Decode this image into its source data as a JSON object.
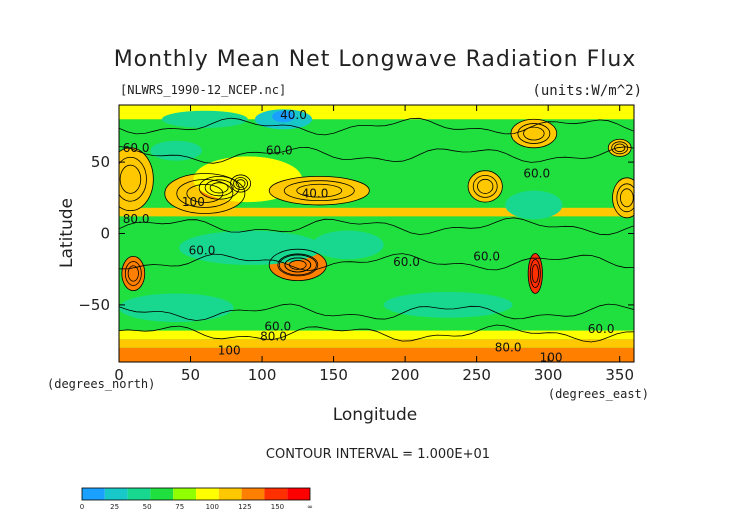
{
  "chart_data": {
    "type": "heatmap",
    "title": "Monthly Mean Net Longwave Radiation Flux",
    "subtitle": "[NLWRS_1990-12_NCEP.nc]",
    "units": "(units:W/m^2)",
    "xlabel": "Longitude",
    "ylabel": "Latitude",
    "x_unit_label": "(degrees_east)",
    "y_unit_label": "(degrees_north)",
    "xlim": [
      0,
      360
    ],
    "ylim": [
      -90,
      90
    ],
    "x_ticks": [
      0,
      50,
      100,
      150,
      200,
      250,
      300,
      350
    ],
    "y_ticks": [
      50,
      0,
      -50
    ],
    "contour_interval_text": "CONTOUR INTERVAL = 1.000E+01",
    "colorbar": {
      "tick_labels": [
        "0",
        "25",
        "50",
        "75",
        "100",
        "125",
        "150",
        "∞"
      ],
      "colors": [
        "#1aa0ff",
        "#18c8c8",
        "#18d890",
        "#20e040",
        "#90ff00",
        "#ffff00",
        "#ffc800",
        "#ff8000",
        "#ff3000",
        "#ff0000"
      ]
    },
    "contour_labels": [
      {
        "text": "40.0",
        "lon": 122,
        "lat": 83
      },
      {
        "text": "40.0",
        "lon": 137,
        "lat": 28
      },
      {
        "text": "60.0",
        "lon": 12,
        "lat": 60
      },
      {
        "text": "60.0",
        "lon": 112,
        "lat": 58
      },
      {
        "text": "60.0",
        "lon": 292,
        "lat": 42
      },
      {
        "text": "80.0",
        "lon": 12,
        "lat": 10
      },
      {
        "text": "100",
        "lon": 52,
        "lat": 22
      },
      {
        "text": "60.0",
        "lon": 58,
        "lat": -12
      },
      {
        "text": "60.0",
        "lon": 201,
        "lat": -20
      },
      {
        "text": "60.0",
        "lon": 257,
        "lat": -16
      },
      {
        "text": "60.0",
        "lon": 111,
        "lat": -65
      },
      {
        "text": "80.0",
        "lon": 108,
        "lat": -72
      },
      {
        "text": "100",
        "lon": 77,
        "lat": -82
      },
      {
        "text": "80.0",
        "lon": 272,
        "lat": -80
      },
      {
        "text": "100",
        "lon": 302,
        "lat": -87
      },
      {
        "text": "60.0",
        "lon": 337,
        "lat": -67
      }
    ],
    "regions": [
      {
        "level": 6,
        "lon": 8,
        "lat": 38,
        "rx": 16,
        "ry": 22
      },
      {
        "level": 6,
        "lon": 60,
        "lat": 28,
        "rx": 28,
        "ry": 14
      },
      {
        "level": 7,
        "lon": 70,
        "lat": 32,
        "rx": 14,
        "ry": 8
      },
      {
        "level": 8,
        "lon": 85,
        "lat": 35,
        "rx": 7,
        "ry": 6
      },
      {
        "level": 5,
        "lon": 90,
        "lat": 38,
        "rx": 38,
        "ry": 16
      },
      {
        "level": 6,
        "lon": 140,
        "lat": 30,
        "rx": 35,
        "ry": 10
      },
      {
        "level": 7,
        "lon": 10,
        "lat": -28,
        "rx": 8,
        "ry": 12
      },
      {
        "level": 8,
        "lon": 125,
        "lat": -22,
        "rx": 13,
        "ry": 7
      },
      {
        "level": 7,
        "lon": 125,
        "lat": -22,
        "rx": 20,
        "ry": 11
      },
      {
        "level": 8,
        "lon": 291,
        "lat": -28,
        "rx": 5,
        "ry": 14
      },
      {
        "level": 6,
        "lon": 256,
        "lat": 33,
        "rx": 12,
        "ry": 11
      },
      {
        "level": 6,
        "lon": 355,
        "lat": 25,
        "rx": 10,
        "ry": 14
      },
      {
        "level": 6,
        "lon": 290,
        "lat": 70,
        "rx": 16,
        "ry": 10
      },
      {
        "level": 2,
        "lon": 60,
        "lat": 80,
        "rx": 30,
        "ry": 6
      },
      {
        "level": 1,
        "lon": 115,
        "lat": 80,
        "rx": 20,
        "ry": 7
      },
      {
        "level": 0,
        "lon": 115,
        "lat": 82,
        "rx": 8,
        "ry": 4
      },
      {
        "level": 2,
        "lon": 40,
        "lat": 58,
        "rx": 18,
        "ry": 7
      },
      {
        "level": 2,
        "lon": 92,
        "lat": -10,
        "rx": 50,
        "ry": 12
      },
      {
        "level": 2,
        "lon": 40,
        "lat": -52,
        "rx": 40,
        "ry": 10
      },
      {
        "level": 2,
        "lon": 230,
        "lat": -50,
        "rx": 45,
        "ry": 9
      },
      {
        "level": 2,
        "lon": 290,
        "lat": 20,
        "rx": 20,
        "ry": 10
      },
      {
        "level": 2,
        "lon": 160,
        "lat": -8,
        "rx": 25,
        "ry": 10
      },
      {
        "level": 6,
        "lon": 350,
        "lat": 60,
        "rx": 8,
        "ry": 6
      }
    ]
  }
}
